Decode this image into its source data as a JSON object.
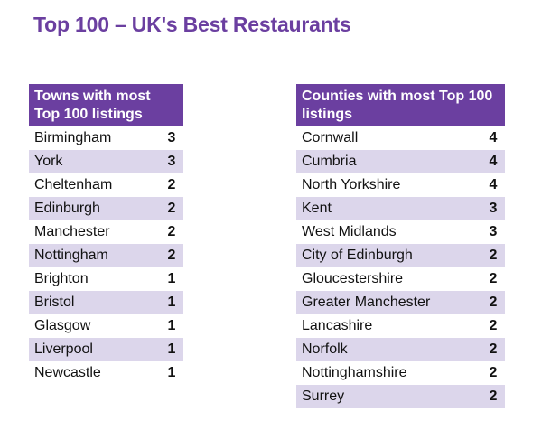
{
  "title": "Top 100 – UK's Best Restaurants",
  "towns_table": {
    "header": "Towns with most Top 100 listings",
    "rows": [
      {
        "name": "Birmingham",
        "count": "3"
      },
      {
        "name": "York",
        "count": "3"
      },
      {
        "name": "Cheltenham",
        "count": "2"
      },
      {
        "name": "Edinburgh",
        "count": "2"
      },
      {
        "name": "Manchester",
        "count": "2"
      },
      {
        "name": "Nottingham",
        "count": "2"
      },
      {
        "name": "Brighton",
        "count": "1"
      },
      {
        "name": "Bristol",
        "count": "1"
      },
      {
        "name": "Glasgow",
        "count": "1"
      },
      {
        "name": "Liverpool",
        "count": "1"
      },
      {
        "name": "Newcastle",
        "count": "1"
      }
    ]
  },
  "counties_table": {
    "header": "Counties with most Top 100 listings",
    "rows": [
      {
        "name": "Cornwall",
        "count": "4"
      },
      {
        "name": "Cumbria",
        "count": "4"
      },
      {
        "name": "North Yorkshire",
        "count": "4"
      },
      {
        "name": "Kent",
        "count": "3"
      },
      {
        "name": "West Midlands",
        "count": "3"
      },
      {
        "name": "City of Edinburgh",
        "count": "2"
      },
      {
        "name": "Gloucestershire",
        "count": "2"
      },
      {
        "name": "Greater Manchester",
        "count": "2"
      },
      {
        "name": "Lancashire",
        "count": "2"
      },
      {
        "name": "Norfolk",
        "count": "2"
      },
      {
        "name": "Nottinghamshire",
        "count": "2"
      },
      {
        "name": "Surrey",
        "count": "2"
      }
    ]
  },
  "colors": {
    "accent": "#6b3fa0",
    "row_shade": "#dcd6eb"
  }
}
